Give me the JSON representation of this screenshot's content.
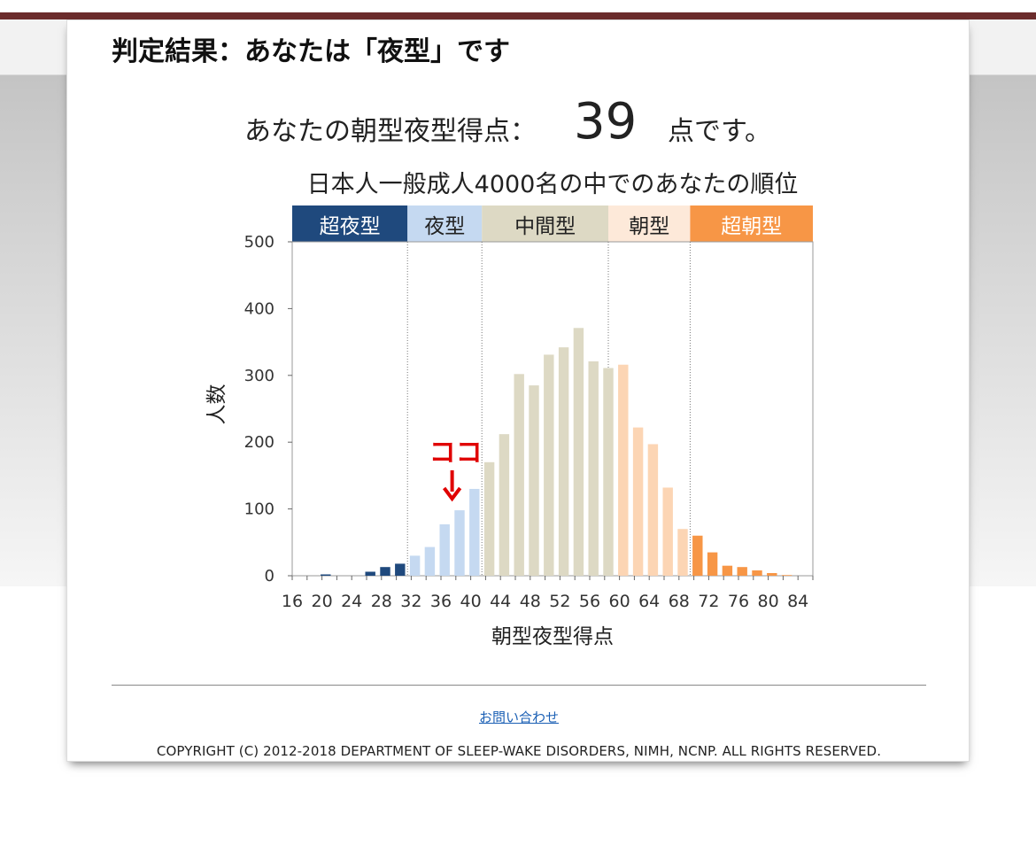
{
  "page": {
    "title": "判定結果：あなたは「夜型」です",
    "score_prefix": "あなたの朝型夜型得点：",
    "score_value": "39",
    "score_suffix": "点です。",
    "contact_link": "お問い合わせ",
    "copyright": "COPYRIGHT (C) 2012-2018 DEPARTMENT OF SLEEP-WAKE DISORDERS, NIMH, NCNP. ALL RIGHTS RESERVED.",
    "colors": {
      "topbar": "#6b2c2c",
      "marker": "#e00000",
      "link": "#1a5fb4"
    }
  },
  "chart_data": {
    "type": "bar",
    "title": "日本人一般成人4000名の中でのあなたの順位",
    "xlabel": "朝型夜型得点",
    "ylabel": "人数",
    "ylim": [
      0,
      500
    ],
    "yticks": [
      0,
      100,
      200,
      300,
      400,
      500
    ],
    "xlim": [
      16,
      86
    ],
    "xticks": [
      16,
      20,
      24,
      28,
      32,
      36,
      40,
      44,
      48,
      52,
      56,
      60,
      64,
      68,
      72,
      76,
      80,
      84
    ],
    "grid": false,
    "categories": [
      {
        "label": "超夜型",
        "from": 16,
        "to": 31.5,
        "color": "#1f497d",
        "text_color": "#ffffff"
      },
      {
        "label": "夜型",
        "from": 31.5,
        "to": 41.5,
        "color": "#c5d9f1",
        "text_color": "#222222"
      },
      {
        "label": "中間型",
        "from": 41.5,
        "to": 58.5,
        "color": "#ddd9c4",
        "text_color": "#222222"
      },
      {
        "label": "朝型",
        "from": 58.5,
        "to": 69.5,
        "color": "#fde9d9",
        "text_color": "#222222"
      },
      {
        "label": "超朝型",
        "from": 69.5,
        "to": 86,
        "color": "#f79646",
        "text_color": "#ffffff"
      }
    ],
    "series": [
      {
        "values": [
          {
            "x": 20,
            "y": 2,
            "color": "#1f497d"
          },
          {
            "x": 26,
            "y": 6,
            "color": "#1f497d"
          },
          {
            "x": 28,
            "y": 13,
            "color": "#1f497d"
          },
          {
            "x": 30,
            "y": 18,
            "color": "#1f497d"
          },
          {
            "x": 32,
            "y": 30,
            "color": "#c5d9f1"
          },
          {
            "x": 34,
            "y": 43,
            "color": "#c5d9f1"
          },
          {
            "x": 36,
            "y": 77,
            "color": "#c5d9f1"
          },
          {
            "x": 38,
            "y": 98,
            "color": "#c5d9f1"
          },
          {
            "x": 40,
            "y": 130,
            "color": "#c5d9f1"
          },
          {
            "x": 42,
            "y": 170,
            "color": "#ddd9c4"
          },
          {
            "x": 44,
            "y": 212,
            "color": "#ddd9c4"
          },
          {
            "x": 46,
            "y": 302,
            "color": "#ddd9c4"
          },
          {
            "x": 48,
            "y": 285,
            "color": "#ddd9c4"
          },
          {
            "x": 50,
            "y": 331,
            "color": "#ddd9c4"
          },
          {
            "x": 52,
            "y": 342,
            "color": "#ddd9c4"
          },
          {
            "x": 54,
            "y": 371,
            "color": "#ddd9c4"
          },
          {
            "x": 56,
            "y": 321,
            "color": "#ddd9c4"
          },
          {
            "x": 58,
            "y": 311,
            "color": "#ddd9c4"
          },
          {
            "x": 60,
            "y": 316,
            "color": "#fcd5b4"
          },
          {
            "x": 62,
            "y": 222,
            "color": "#fcd5b4"
          },
          {
            "x": 64,
            "y": 197,
            "color": "#fcd5b4"
          },
          {
            "x": 66,
            "y": 132,
            "color": "#fcd5b4"
          },
          {
            "x": 68,
            "y": 70,
            "color": "#fcd5b4"
          },
          {
            "x": 70,
            "y": 60,
            "color": "#f79646"
          },
          {
            "x": 72,
            "y": 35,
            "color": "#f79646"
          },
          {
            "x": 74,
            "y": 15,
            "color": "#f79646"
          },
          {
            "x": 76,
            "y": 13,
            "color": "#f79646"
          },
          {
            "x": 78,
            "y": 8,
            "color": "#f79646"
          },
          {
            "x": 80,
            "y": 4,
            "color": "#f79646"
          },
          {
            "x": 82,
            "y": 1,
            "color": "#f79646"
          }
        ]
      }
    ],
    "boundaries": [
      31.5,
      41.5,
      58.5,
      69.5
    ],
    "annotation": {
      "text": "ココ",
      "x": 37,
      "color": "#e00000"
    }
  }
}
